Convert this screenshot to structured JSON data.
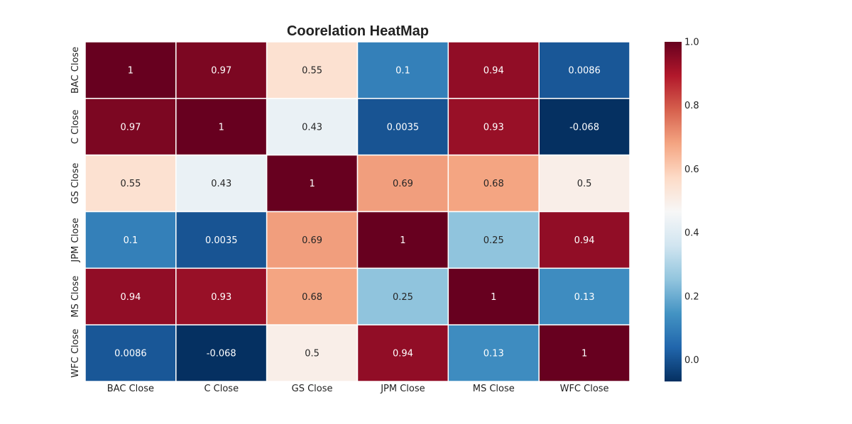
{
  "chart_data": {
    "type": "heatmap",
    "title": "Coorelation HeatMap",
    "x_categories": [
      "BAC Close",
      "C Close",
      "GS Close",
      "JPM Close",
      "MS Close",
      "WFC Close"
    ],
    "y_categories": [
      "BAC Close",
      "C Close",
      "GS Close",
      "JPM Close",
      "MS Close",
      "WFC Close"
    ],
    "values": [
      [
        1,
        0.97,
        0.55,
        0.1,
        0.94,
        0.0086
      ],
      [
        0.97,
        1,
        0.43,
        0.0035,
        0.93,
        -0.068
      ],
      [
        0.55,
        0.43,
        1,
        0.69,
        0.68,
        0.5
      ],
      [
        0.1,
        0.0035,
        0.69,
        1,
        0.25,
        0.94
      ],
      [
        0.94,
        0.93,
        0.68,
        0.25,
        1,
        0.13
      ],
      [
        0.0086,
        -0.068,
        0.5,
        0.94,
        0.13,
        1
      ]
    ],
    "annotations": [
      [
        "1",
        "0.97",
        "0.55",
        "0.1",
        "0.94",
        "0.0086"
      ],
      [
        "0.97",
        "1",
        "0.43",
        "0.0035",
        "0.93",
        "-0.068"
      ],
      [
        "0.55",
        "0.43",
        "1",
        "0.69",
        "0.68",
        "0.5"
      ],
      [
        "0.1",
        "0.0035",
        "0.69",
        "1",
        "0.25",
        "0.94"
      ],
      [
        "0.94",
        "0.93",
        "0.68",
        "0.25",
        "1",
        "0.13"
      ],
      [
        "0.0086",
        "-0.068",
        "0.5",
        "0.94",
        "0.13",
        "1"
      ]
    ],
    "colormap": "RdBu_r",
    "vmin": -0.068,
    "vmax": 1.0,
    "colorbar_ticks": [
      "0.0",
      "0.2",
      "0.4",
      "0.6",
      "0.8",
      "1.0"
    ],
    "colorbar_tick_values": [
      0.0,
      0.2,
      0.4,
      0.6,
      0.8,
      1.0
    ],
    "cell_border_color": "#ffffff",
    "colorbar": "right"
  }
}
